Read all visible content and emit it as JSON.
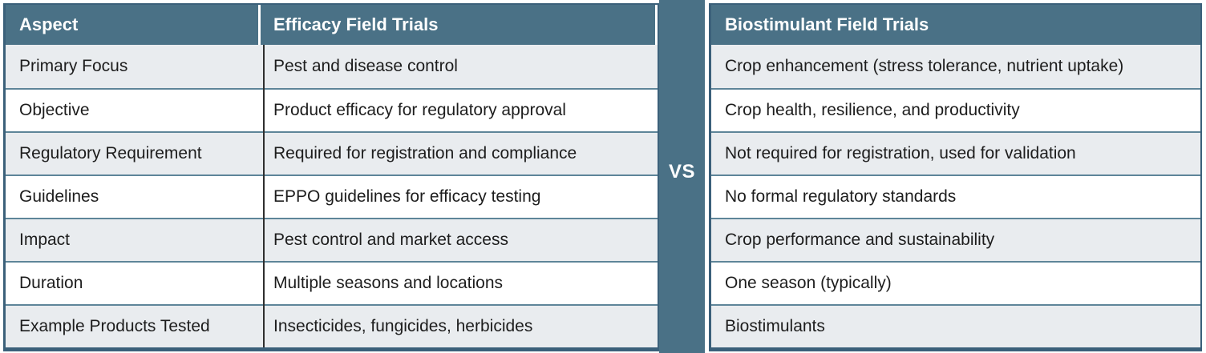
{
  "comparison": {
    "vs_label": "VS",
    "left_table": {
      "headers": [
        "Aspect",
        "Efficacy Field Trials"
      ],
      "rows": [
        [
          "Primary Focus",
          "Pest and disease control"
        ],
        [
          "Objective",
          "Product efficacy for regulatory approval"
        ],
        [
          "Regulatory Requirement",
          "Required for registration and compliance"
        ],
        [
          "Guidelines",
          "EPPO guidelines for efficacy testing"
        ],
        [
          "Impact",
          "Pest control and market access"
        ],
        [
          "Duration",
          "Multiple seasons and locations"
        ],
        [
          "Example Products Tested",
          "Insecticides, fungicides, herbicides"
        ]
      ]
    },
    "right_table": {
      "header": "Biostimulant Field Trials",
      "rows": [
        "Crop enhancement (stress tolerance, nutrient uptake)",
        "Crop health, resilience, and productivity",
        "Not required for registration, used for validation",
        "No formal regulatory standards",
        "Crop performance and sustainability",
        "One season (typically)",
        "Biostimulants"
      ]
    },
    "colors": {
      "header_background": "#4a7186",
      "row_alt_background": "#e9ecef",
      "row_background": "#ffffff",
      "border_dark": "#3b607a",
      "row_separator": "#5e8599",
      "body_text": "#1d1d1d",
      "header_text": "#ffffff"
    }
  }
}
